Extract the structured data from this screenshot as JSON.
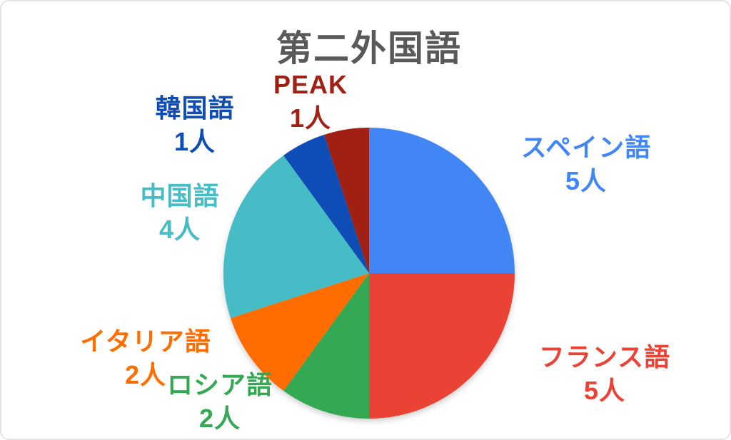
{
  "page": {
    "background": "#ffffff",
    "frame_border_color": "#e4e4e4"
  },
  "chart_data": {
    "type": "pie",
    "title": "第二外国語",
    "title_color": "#595959",
    "unit": "人",
    "total": 20,
    "start_angle_deg": 0,
    "direction": "clockwise",
    "legend_position": "labels-around-pie",
    "grid": false,
    "slices": [
      {
        "label": "スペイン語",
        "value": 5,
        "value_label": "5人",
        "color": "#4285F4"
      },
      {
        "label": "フランス語",
        "value": 5,
        "value_label": "5人",
        "color": "#EA4335"
      },
      {
        "label": "ロシア語",
        "value": 2,
        "value_label": "2人",
        "color": "#34A853"
      },
      {
        "label": "イタリア語",
        "value": 2,
        "value_label": "2人",
        "color": "#FF6D01"
      },
      {
        "label": "中国語",
        "value": 4,
        "value_label": "4人",
        "color": "#46BDC6"
      },
      {
        "label": "韓国語",
        "value": 1,
        "value_label": "1人",
        "color": "#0E4DB5"
      },
      {
        "label": "PEAK",
        "value": 1,
        "value_label": "1人",
        "color": "#A02014"
      }
    ]
  }
}
